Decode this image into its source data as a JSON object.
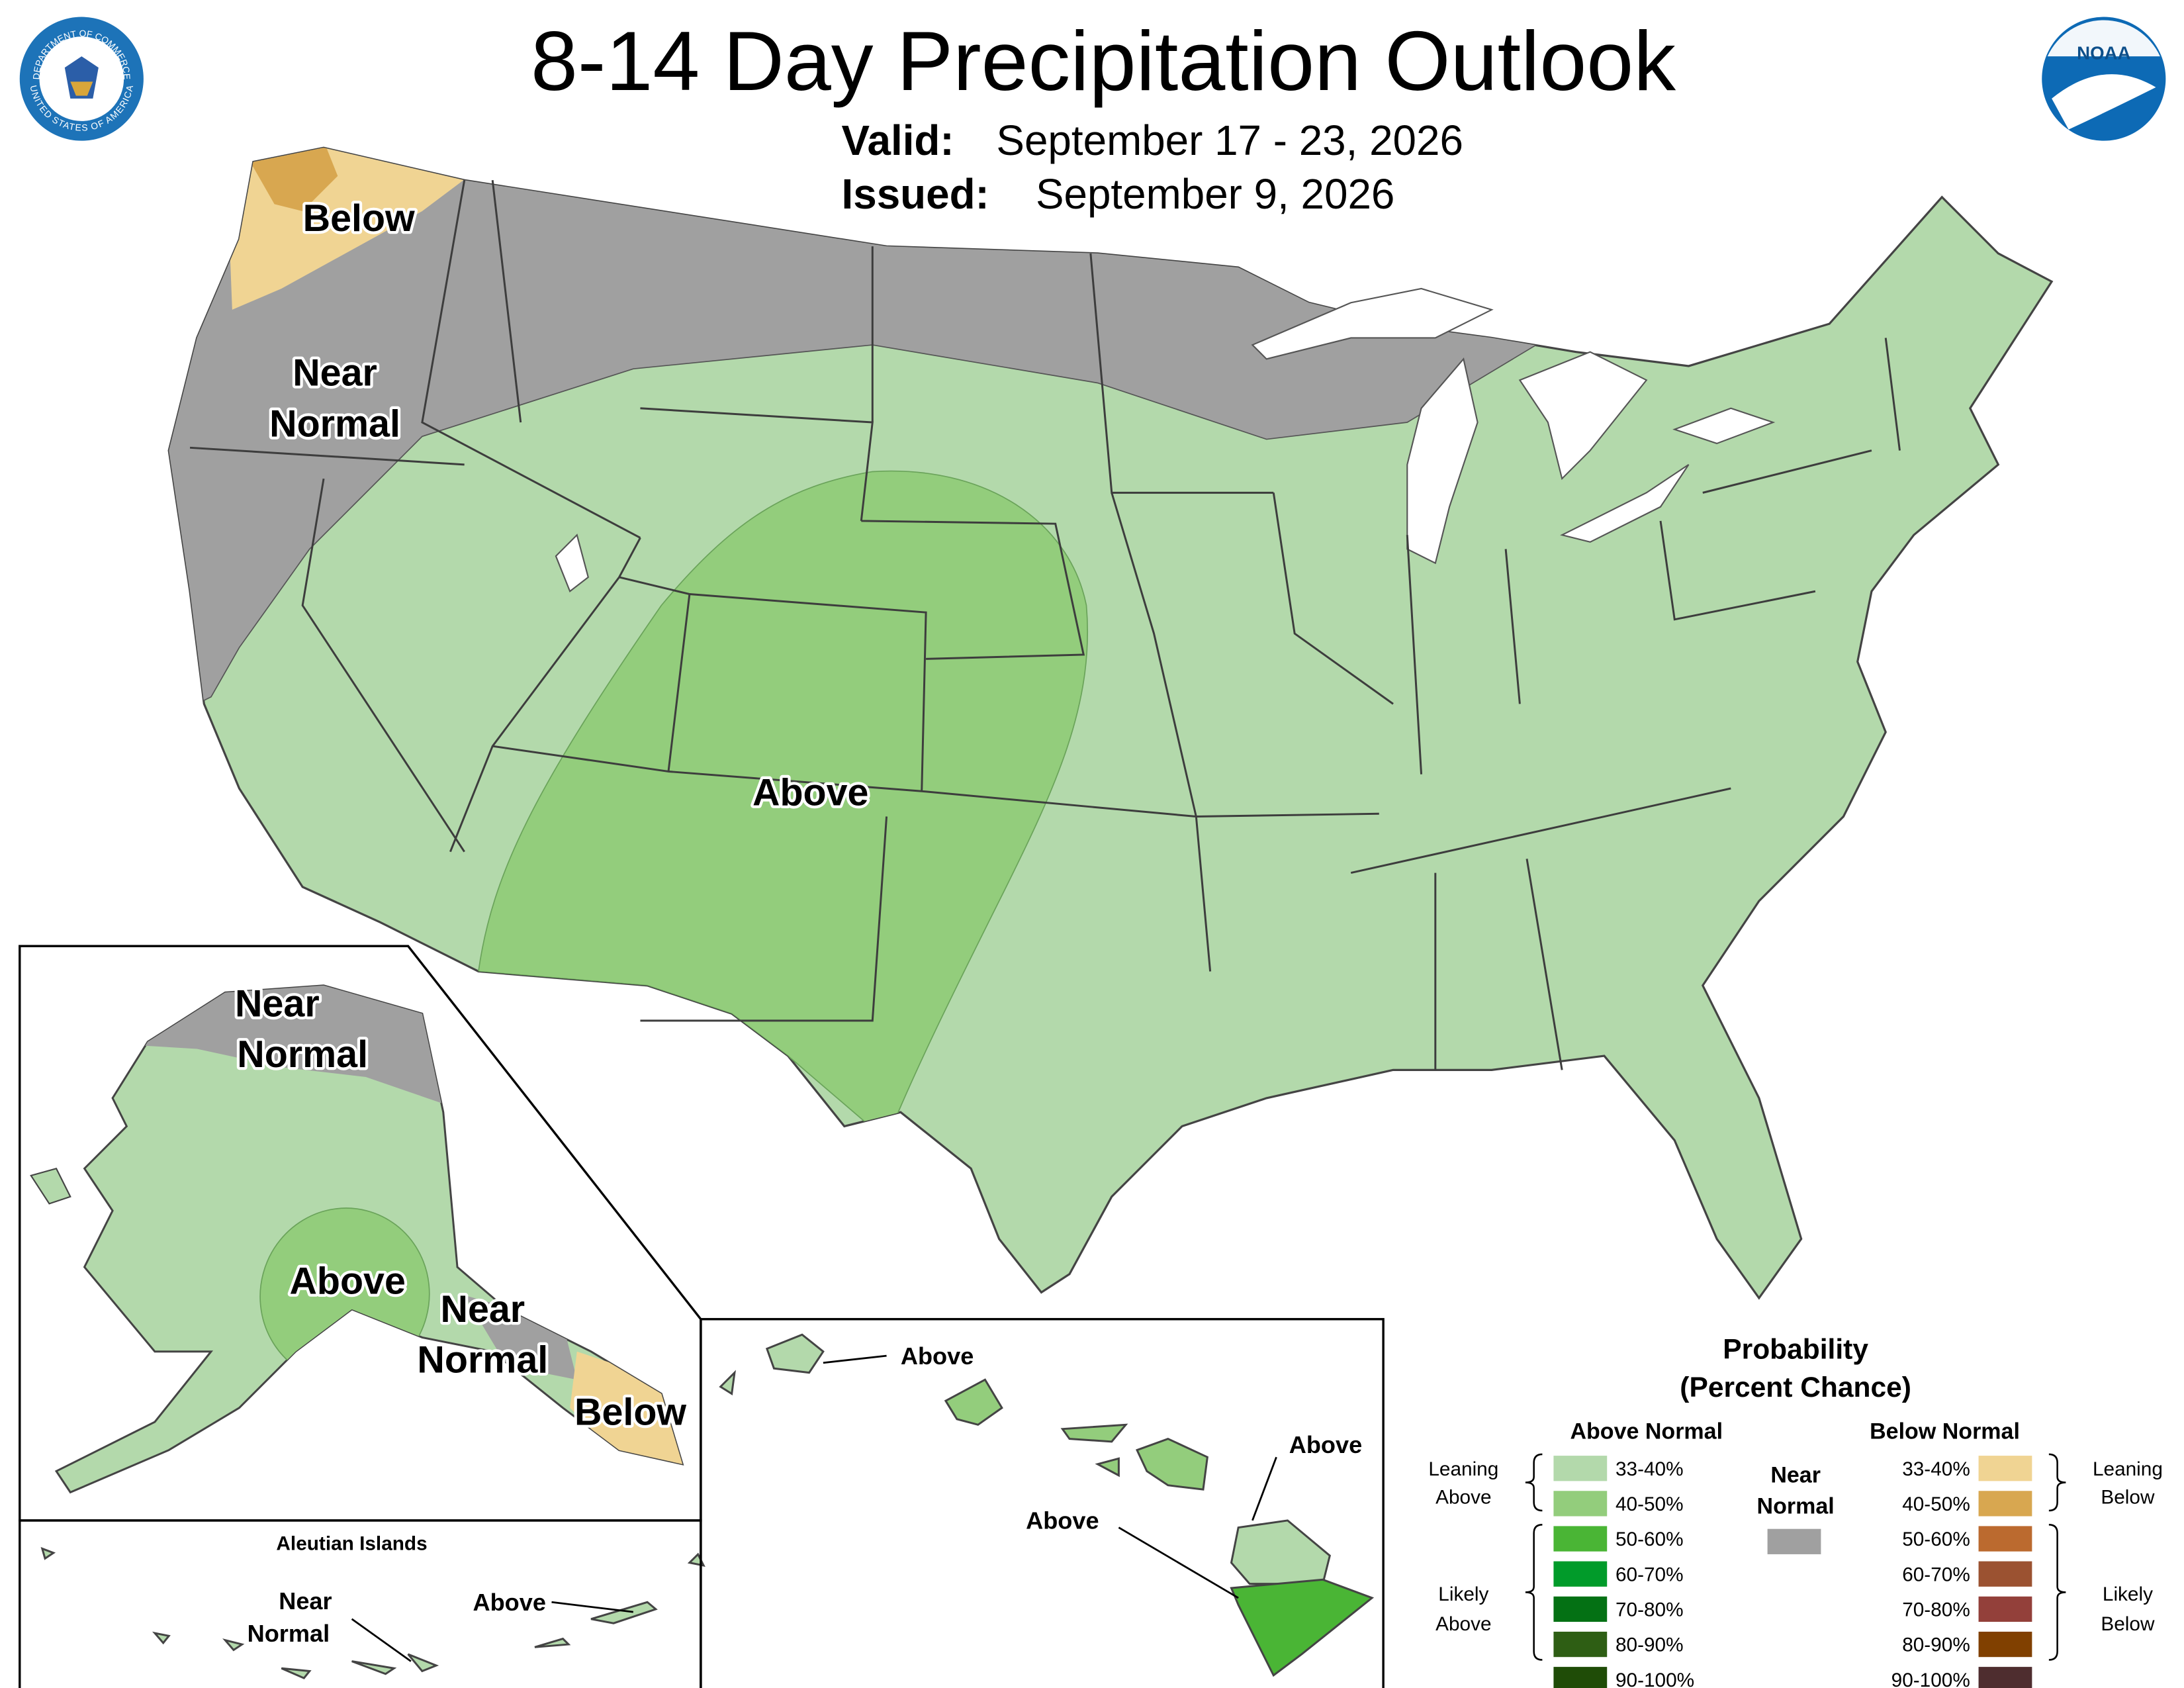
{
  "header": {
    "title": "8-14 Day Precipitation Outlook",
    "valid_label": "Valid:",
    "valid_dates": "September 17 - 23, 2026",
    "issued_label": "Issued:",
    "issued_date": "September 9, 2026"
  },
  "logos": {
    "seal_top": "DEPARTMENT OF COMMERCE",
    "seal_bottom": "UNITED STATES OF AMERICA",
    "noaa": "NOAA"
  },
  "conus_labels": {
    "below": {
      "lines": [
        "Below"
      ]
    },
    "near_normal": {
      "lines": [
        "Near",
        "Normal"
      ]
    },
    "above": {
      "lines": [
        "Above"
      ]
    }
  },
  "alaska_labels": {
    "near_normal_north": {
      "lines": [
        "Near",
        "Normal"
      ]
    },
    "above": {
      "lines": [
        "Above"
      ]
    },
    "near_normal_southeast": {
      "lines": [
        "Near",
        "Normal"
      ]
    },
    "below": {
      "lines": [
        "Below"
      ]
    }
  },
  "aleutian": {
    "title": "Aleutian Islands",
    "near_normal": {
      "lines": [
        "Near",
        "Normal"
      ]
    },
    "above": {
      "lines": [
        "Above"
      ]
    }
  },
  "hawaii_labels": {
    "kauai": "Above",
    "big_island_north": "Above",
    "big_island_south": "Above"
  },
  "legend": {
    "title_lines": [
      "Probability",
      "(Percent Chance)"
    ],
    "above_header": "Above Normal",
    "below_header": "Below Normal",
    "near": {
      "lines": [
        "Near",
        "Normal"
      ],
      "color": "#a0a0a0"
    },
    "above_items": [
      {
        "label": "33-40%",
        "color": "#b3d9ab"
      },
      {
        "label": "40-50%",
        "color": "#93cd7c"
      },
      {
        "label": "50-60%",
        "color": "#4ab535"
      },
      {
        "label": "60-70%",
        "color": "#019b2a"
      },
      {
        "label": "70-80%",
        "color": "#047114"
      },
      {
        "label": "80-90%",
        "color": "#2e5e14"
      },
      {
        "label": "90-100%",
        "color": "#1f4c07"
      }
    ],
    "below_items": [
      {
        "label": "33-40%",
        "color": "#f0d493"
      },
      {
        "label": "40-50%",
        "color": "#d8a750"
      },
      {
        "label": "50-60%",
        "color": "#bb6a2f"
      },
      {
        "label": "60-70%",
        "color": "#9b5231"
      },
      {
        "label": "70-80%",
        "color": "#93403a"
      },
      {
        "label": "80-90%",
        "color": "#804000"
      },
      {
        "label": "90-100%",
        "color": "#4e2d2f"
      }
    ],
    "leaning_above": [
      "Leaning",
      "Above"
    ],
    "likely_above": [
      "Likely",
      "Above"
    ],
    "leaning_below": [
      "Leaning",
      "Below"
    ],
    "likely_below": [
      "Likely",
      "Below"
    ]
  }
}
